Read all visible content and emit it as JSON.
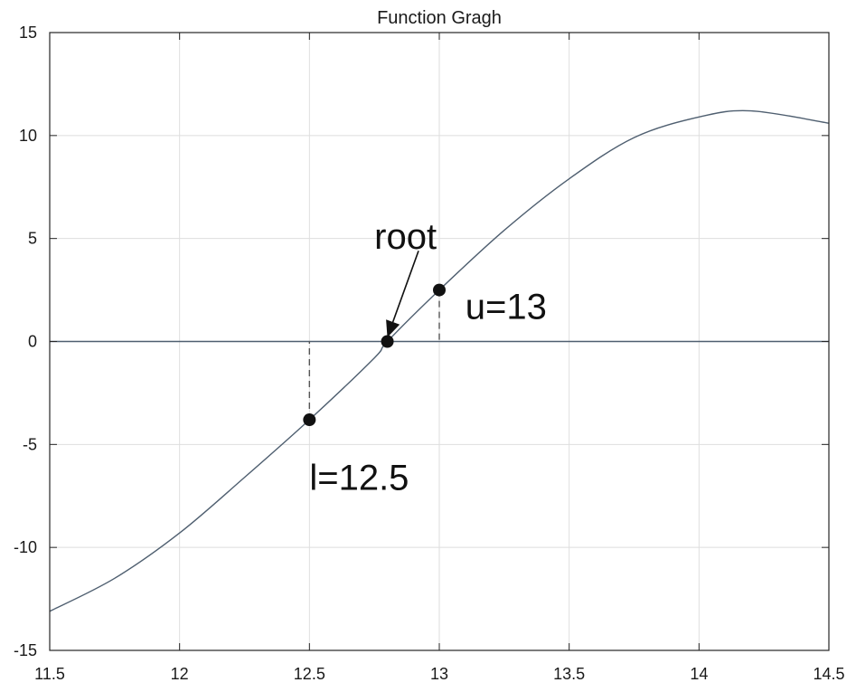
{
  "chart_data": {
    "type": "line",
    "title": "Function Gragh",
    "xlabel": "",
    "ylabel": "",
    "xlim": [
      11.5,
      14.5
    ],
    "ylim": [
      -15,
      15
    ],
    "grid": true,
    "x_ticks": [
      11.5,
      12,
      12.5,
      13,
      13.5,
      14,
      14.5
    ],
    "x_tick_labels": [
      "11.5",
      "12",
      "12.5",
      "13",
      "13.5",
      "14",
      "14.5"
    ],
    "y_ticks": [
      15,
      10,
      5,
      0,
      -5,
      -10,
      -15
    ],
    "y_tick_labels": [
      "15",
      "10",
      "5",
      "0",
      "-5",
      "-10",
      "-15"
    ],
    "series": [
      {
        "color": "#4f5f70",
        "x": [
          11.5,
          11.75,
          12,
          12.25,
          12.5,
          12.75,
          12.8,
          13,
          13.25,
          13.5,
          13.75,
          14,
          14.2,
          14.5
        ],
        "y": [
          -13.1,
          -11.5,
          -9.3,
          -6.6,
          -3.8,
          -0.8,
          0,
          2.5,
          5.4,
          7.9,
          9.9,
          10.9,
          11.2,
          10.6
        ]
      }
    ],
    "zero_line": {
      "y": 0,
      "color": "#4f5f70"
    },
    "points": [
      {
        "name": "lower",
        "x": 12.5,
        "y": -3.8
      },
      {
        "name": "root",
        "x": 12.8,
        "y": 0
      },
      {
        "name": "upper",
        "x": 13,
        "y": 2.5
      }
    ],
    "annotations": [
      {
        "text": "root",
        "x": 12.75,
        "y": 4.5
      },
      {
        "text": "u=13",
        "x": 13.1,
        "y": 1.1
      },
      {
        "text": "l=12.5",
        "x": 12.5,
        "y": -7.2
      }
    ],
    "arrow": {
      "from": [
        12.92,
        4.4
      ],
      "to": [
        12.8,
        0.2
      ]
    }
  }
}
